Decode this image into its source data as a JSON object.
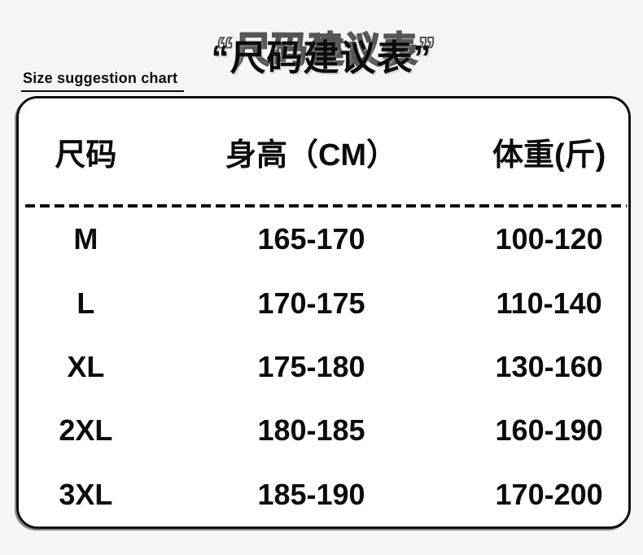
{
  "header": {
    "title": "“尺码建议表”",
    "subtitle": "Size suggestion chart"
  },
  "colors": {
    "page_background": "#f5f5f5",
    "card_background": "#ffffff",
    "text": "#0c0c0c",
    "border": "#101010"
  },
  "chart_data": {
    "type": "table",
    "title": "尺码建议表",
    "subtitle": "Size suggestion chart",
    "columns": [
      "尺码",
      "身高（CM）",
      "体重(斤)"
    ],
    "rows": [
      [
        "M",
        "165-170",
        "100-120"
      ],
      [
        "L",
        "170-175",
        "110-140"
      ],
      [
        "XL",
        "175-180",
        "130-160"
      ],
      [
        "2XL",
        "180-185",
        "160-190"
      ],
      [
        "3XL",
        "185-190",
        "170-200"
      ]
    ]
  }
}
